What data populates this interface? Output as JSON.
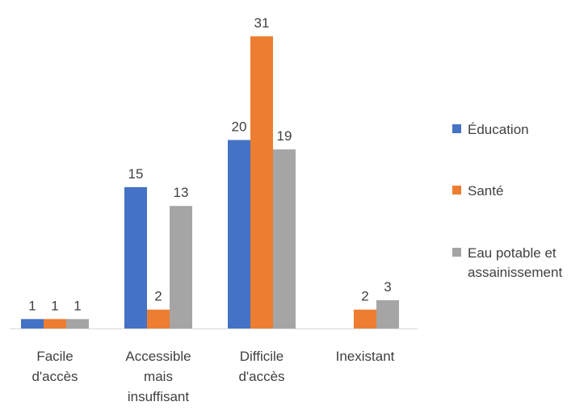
{
  "chart_data": {
    "type": "bar",
    "categories": [
      [
        "Facile",
        "d'accès"
      ],
      [
        "Accessible",
        "mais",
        "insuffisant"
      ],
      [
        "Difficile",
        "d'accès"
      ],
      [
        "Inexistant"
      ]
    ],
    "series": [
      {
        "name": "Éducation",
        "color": "#4472c4",
        "values": [
          1,
          15,
          20,
          null
        ]
      },
      {
        "name": "Santé",
        "color": "#ed7d31",
        "values": [
          1,
          2,
          31,
          2
        ]
      },
      {
        "name": "Eau potable et assainissement",
        "legend_lines": [
          "Eau potable et",
          "assainissement"
        ],
        "color": "#a5a5a5",
        "values": [
          1,
          13,
          19,
          3
        ]
      }
    ],
    "ylim": [
      0,
      31
    ],
    "grid": false,
    "legend_position": "right",
    "data_labels": true,
    "axis_color": "#d9d9d9",
    "text_color": "#404040"
  }
}
